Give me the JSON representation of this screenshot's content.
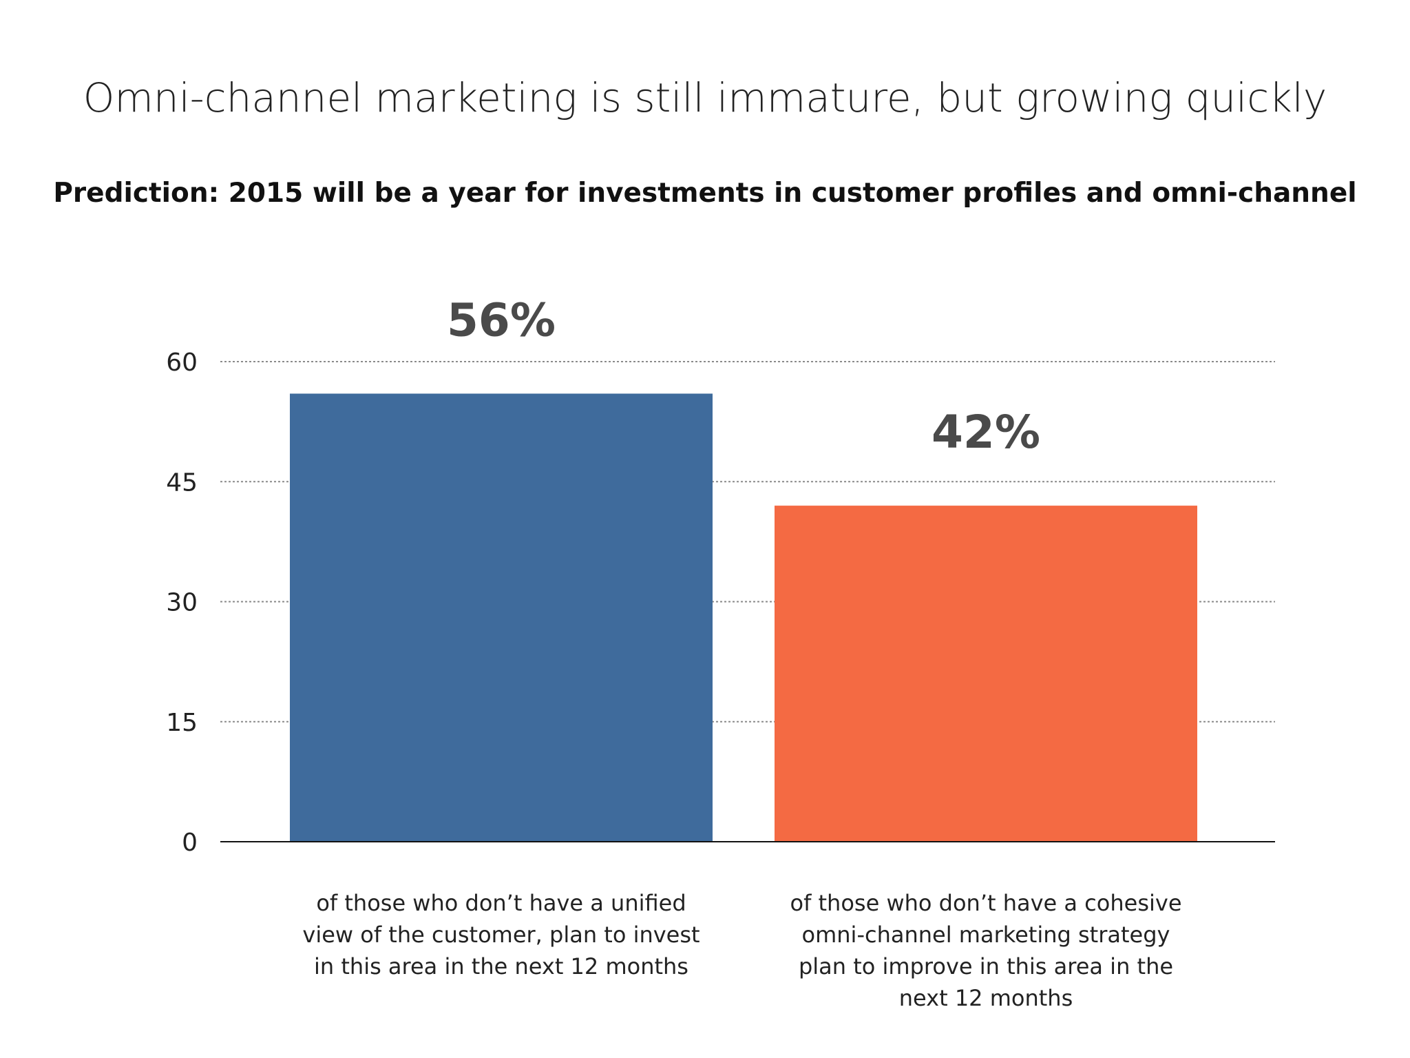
{
  "header": {
    "title": "Omni-channel marketing is still immature, but growing quickly",
    "subtitle": "Prediction: 2015 will be a year for investments in customer profiles and omni-channel"
  },
  "chart_data": {
    "type": "bar",
    "categories": [
      "of those who don’t have a unified view of the customer, plan to invest in this area in the next 12 months",
      "of those who don’t have a cohesive omni-channel marketing strategy plan to improve in this area in the next 12 months"
    ],
    "values": [
      56,
      42
    ],
    "data_labels": [
      "56%",
      "42%"
    ],
    "colors": [
      "#3f6b9c",
      "#f46a43"
    ],
    "ylim": [
      0,
      60
    ],
    "yticks": [
      0,
      15,
      30,
      45,
      60
    ],
    "grid": true,
    "legend": "none",
    "xlabel": "",
    "ylabel": ""
  }
}
